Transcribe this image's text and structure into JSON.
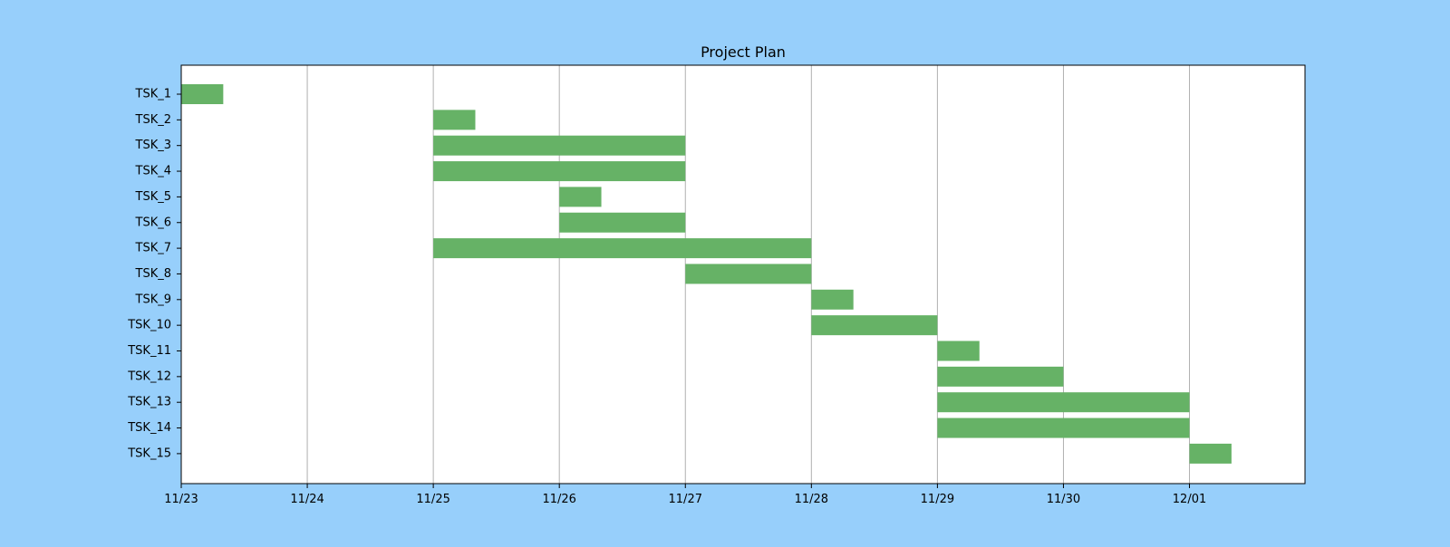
{
  "page": {
    "background_color": "#97CFFB"
  },
  "chart_data": {
    "type": "gantt",
    "title": "Project Plan",
    "xlabel": "",
    "ylabel": "",
    "x_axis": {
      "kind": "date",
      "range": [
        "2023-11-23",
        "2023-12-01 22:00"
      ],
      "tick_values": [
        "2023-11-23",
        "2023-11-24",
        "2023-11-25",
        "2023-11-26",
        "2023-11-27",
        "2023-11-28",
        "2023-11-29",
        "2023-11-30",
        "2023-12-01"
      ],
      "tick_labels": [
        "11/23",
        "11/24",
        "11/25",
        "11/26",
        "11/27",
        "11/28",
        "11/29",
        "11/30",
        "12/01"
      ]
    },
    "grid": "vertical",
    "legend": "none",
    "bar_color": "#66B266",
    "plot_background": "#FFFFFF",
    "tasks": [
      {
        "name": "TSK_1",
        "start": "2023-11-23 00:00",
        "end": "2023-11-23 08:00"
      },
      {
        "name": "TSK_2",
        "start": "2023-11-25 00:00",
        "end": "2023-11-25 08:00"
      },
      {
        "name": "TSK_3",
        "start": "2023-11-25 00:00",
        "end": "2023-11-27 00:00"
      },
      {
        "name": "TSK_4",
        "start": "2023-11-25 00:00",
        "end": "2023-11-27 00:00"
      },
      {
        "name": "TSK_5",
        "start": "2023-11-26 00:00",
        "end": "2023-11-26 08:00"
      },
      {
        "name": "TSK_6",
        "start": "2023-11-26 00:00",
        "end": "2023-11-27 00:00"
      },
      {
        "name": "TSK_7",
        "start": "2023-11-25 00:00",
        "end": "2023-11-28 00:00"
      },
      {
        "name": "TSK_8",
        "start": "2023-11-27 00:00",
        "end": "2023-11-28 00:00"
      },
      {
        "name": "TSK_9",
        "start": "2023-11-28 00:00",
        "end": "2023-11-28 08:00"
      },
      {
        "name": "TSK_10",
        "start": "2023-11-28 00:00",
        "end": "2023-11-29 00:00"
      },
      {
        "name": "TSK_11",
        "start": "2023-11-29 00:00",
        "end": "2023-11-29 08:00"
      },
      {
        "name": "TSK_12",
        "start": "2023-11-29 00:00",
        "end": "2023-11-30 00:00"
      },
      {
        "name": "TSK_13",
        "start": "2023-11-29 00:00",
        "end": "2023-12-01 00:00"
      },
      {
        "name": "TSK_14",
        "start": "2023-11-29 00:00",
        "end": "2023-12-01 00:00"
      },
      {
        "name": "TSK_15",
        "start": "2023-12-01 00:00",
        "end": "2023-12-01 08:00"
      }
    ]
  }
}
